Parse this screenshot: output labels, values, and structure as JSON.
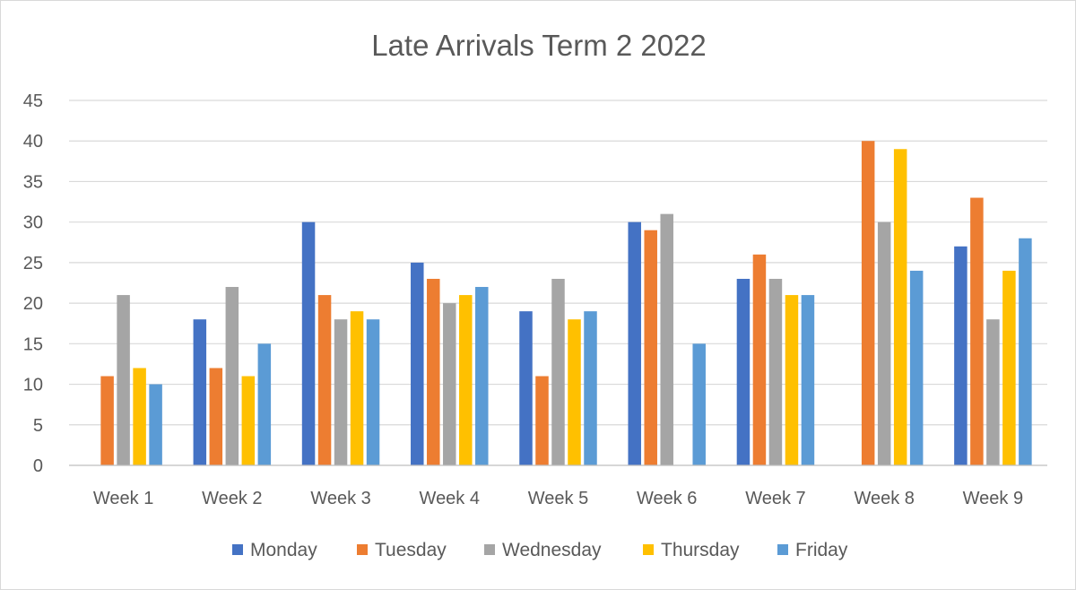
{
  "chart_data": {
    "type": "bar",
    "title": "Late Arrivals Term 2 2022",
    "xlabel": "",
    "ylabel": "",
    "ylim": [
      0,
      45
    ],
    "yticks": [
      0,
      5,
      10,
      15,
      20,
      25,
      30,
      35,
      40,
      45
    ],
    "grid": true,
    "legend_position": "bottom",
    "categories": [
      "Week 1",
      "Week 2",
      "Week 3",
      "Week 4",
      "Week 5",
      "Week 6",
      "Week 7",
      "Week 8",
      "Week 9"
    ],
    "series": [
      {
        "name": "Monday",
        "color": "#4472c4",
        "values": [
          0,
          18,
          30,
          25,
          19,
          30,
          23,
          0,
          27
        ]
      },
      {
        "name": "Tuesday",
        "color": "#ed7d31",
        "values": [
          11,
          12,
          21,
          23,
          11,
          29,
          26,
          40,
          33
        ]
      },
      {
        "name": "Wednesday",
        "color": "#a5a5a5",
        "values": [
          21,
          22,
          18,
          20,
          23,
          31,
          23,
          30,
          18
        ]
      },
      {
        "name": "Thursday",
        "color": "#ffc000",
        "values": [
          12,
          11,
          19,
          21,
          18,
          0,
          21,
          39,
          24
        ]
      },
      {
        "name": "Friday",
        "color": "#5b9bd5",
        "values": [
          10,
          15,
          18,
          22,
          19,
          15,
          21,
          24,
          28
        ]
      }
    ]
  }
}
